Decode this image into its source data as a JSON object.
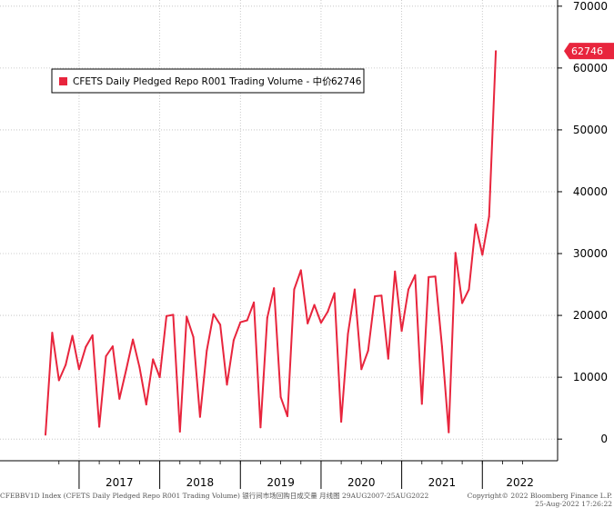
{
  "chart_data": {
    "type": "line",
    "series": [
      {
        "name": "CFETS Daily Pledged Repo R001 Trading Volume - 中价",
        "last_value": "62746",
        "color": "#e8253d",
        "values": [
          700,
          17200,
          9500,
          12000,
          16700,
          11300,
          14900,
          16800,
          2000,
          13400,
          15000,
          6500,
          11200,
          16100,
          11600,
          5600,
          12900,
          10000,
          19900,
          20100,
          1200,
          19800,
          16500,
          3600,
          14300,
          20200,
          18500,
          8800,
          16000,
          18900,
          19200,
          22100,
          1900,
          19600,
          24400,
          6800,
          3700,
          24200,
          27300,
          18700,
          21700,
          18800,
          20600,
          23600,
          2800,
          17000,
          24200,
          11300,
          14300,
          23100,
          23200,
          13000,
          27100,
          17500,
          24200,
          26500,
          5700,
          26200,
          26300,
          15000,
          1100,
          30100,
          22000,
          24200,
          34700,
          29800,
          36000,
          62746
        ]
      }
    ],
    "x_start": "2016-08",
    "x_end": "2022-08",
    "x_tick_labels": [
      "2017",
      "2018",
      "2019",
      "2020",
      "2021",
      "2022"
    ],
    "ylim": [
      -3500,
      71000
    ],
    "y_ticks": [
      0,
      10000,
      20000,
      30000,
      40000,
      50000,
      60000,
      70000
    ],
    "y_axis_side": "right",
    "legend_position": "top-left"
  },
  "footer": {
    "left": "CFEBBV1D Index (CFETS Daily Pledged Repo R001 Trading Volume) 银行间市场回购日成交量   月线图 29AUG2007-25AUG2022",
    "copyright": "Copyright© 2022 Bloomberg Finance L.P.",
    "timestamp": "25-Aug-2022 17:26:22"
  }
}
